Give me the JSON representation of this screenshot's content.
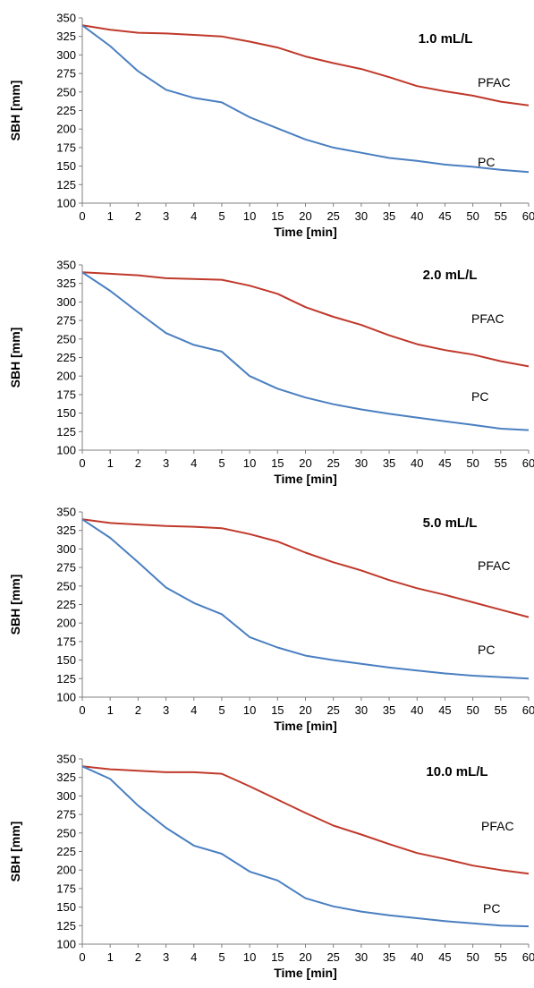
{
  "chart_data": [
    {
      "type": "line",
      "title": "1.0 mL/L",
      "xlabel": "Time [min]",
      "ylabel": "SBH [mm]",
      "categories": [
        "0",
        "1",
        "2",
        "3",
        "4",
        "5",
        "10",
        "15",
        "20",
        "25",
        "30",
        "35",
        "40",
        "45",
        "50",
        "55",
        "60"
      ],
      "ylim": [
        100,
        350
      ],
      "yticks": [
        "100",
        "125",
        "150",
        "175",
        "200",
        "225",
        "250",
        "275",
        "300",
        "325",
        "350"
      ],
      "grid": false,
      "series": [
        {
          "name": "PFAC",
          "color": "#c0392b",
          "values": [
            340,
            334,
            330,
            329,
            327,
            325,
            318,
            310,
            298,
            289,
            281,
            270,
            258,
            251,
            245,
            237,
            232
          ]
        },
        {
          "name": "PC",
          "color": "#4a7fc1",
          "values": [
            340,
            312,
            278,
            253,
            242,
            236,
            216,
            201,
            186,
            175,
            168,
            161,
            157,
            152,
            149,
            145,
            142
          ]
        }
      ]
    },
    {
      "type": "line",
      "title": "2.0 mL/L",
      "xlabel": "Time [min]",
      "ylabel": "SBH [mm]",
      "categories": [
        "0",
        "1",
        "2",
        "3",
        "4",
        "5",
        "10",
        "15",
        "20",
        "25",
        "30",
        "35",
        "40",
        "45",
        "50",
        "55",
        "60"
      ],
      "ylim": [
        100,
        350
      ],
      "yticks": [
        "100",
        "125",
        "150",
        "175",
        "200",
        "225",
        "250",
        "275",
        "300",
        "325",
        "350"
      ],
      "grid": false,
      "series": [
        {
          "name": "PFAC",
          "color": "#c0392b",
          "values": [
            340,
            338,
            336,
            332,
            331,
            330,
            322,
            311,
            293,
            280,
            269,
            255,
            243,
            235,
            229,
            220,
            213
          ]
        },
        {
          "name": "PC",
          "color": "#4a7fc1",
          "values": [
            340,
            315,
            286,
            258,
            242,
            233,
            200,
            183,
            171,
            162,
            155,
            149,
            144,
            139,
            134,
            129,
            127
          ]
        }
      ]
    },
    {
      "type": "line",
      "title": "5.0 mL/L",
      "xlabel": "Time [min]",
      "ylabel": "SBH [mm]",
      "categories": [
        "0",
        "1",
        "2",
        "3",
        "4",
        "5",
        "10",
        "15",
        "20",
        "25",
        "30",
        "35",
        "40",
        "45",
        "50",
        "55",
        "60"
      ],
      "ylim": [
        100,
        350
      ],
      "yticks": [
        "100",
        "125",
        "150",
        "175",
        "200",
        "225",
        "250",
        "275",
        "300",
        "325",
        "350"
      ],
      "grid": false,
      "series": [
        {
          "name": "PFAC",
          "color": "#c0392b",
          "values": [
            340,
            335,
            333,
            331,
            330,
            328,
            320,
            310,
            295,
            282,
            271,
            258,
            247,
            238,
            228,
            218,
            208
          ]
        },
        {
          "name": "PC",
          "color": "#4a7fc1",
          "values": [
            340,
            315,
            282,
            248,
            227,
            212,
            181,
            167,
            156,
            150,
            145,
            140,
            136,
            132,
            129,
            127,
            125
          ]
        }
      ]
    },
    {
      "type": "line",
      "title": "10.0 mL/L",
      "xlabel": "Time [min]",
      "ylabel": "SBH [mm]",
      "categories": [
        "0",
        "1",
        "2",
        "3",
        "4",
        "5",
        "10",
        "15",
        "20",
        "25",
        "30",
        "35",
        "40",
        "45",
        "50",
        "55",
        "60"
      ],
      "ylim": [
        100,
        350
      ],
      "yticks": [
        "100",
        "125",
        "150",
        "175",
        "200",
        "225",
        "250",
        "275",
        "300",
        "325",
        "350"
      ],
      "grid": false,
      "series": [
        {
          "name": "PFAC",
          "color": "#c0392b",
          "values": [
            340,
            336,
            334,
            332,
            332,
            330,
            313,
            295,
            277,
            260,
            248,
            235,
            223,
            215,
            206,
            200,
            195
          ]
        },
        {
          "name": "PC",
          "color": "#4a7fc1",
          "values": [
            340,
            323,
            287,
            257,
            233,
            222,
            198,
            186,
            162,
            151,
            144,
            139,
            135,
            131,
            128,
            125,
            124
          ]
        }
      ]
    }
  ]
}
